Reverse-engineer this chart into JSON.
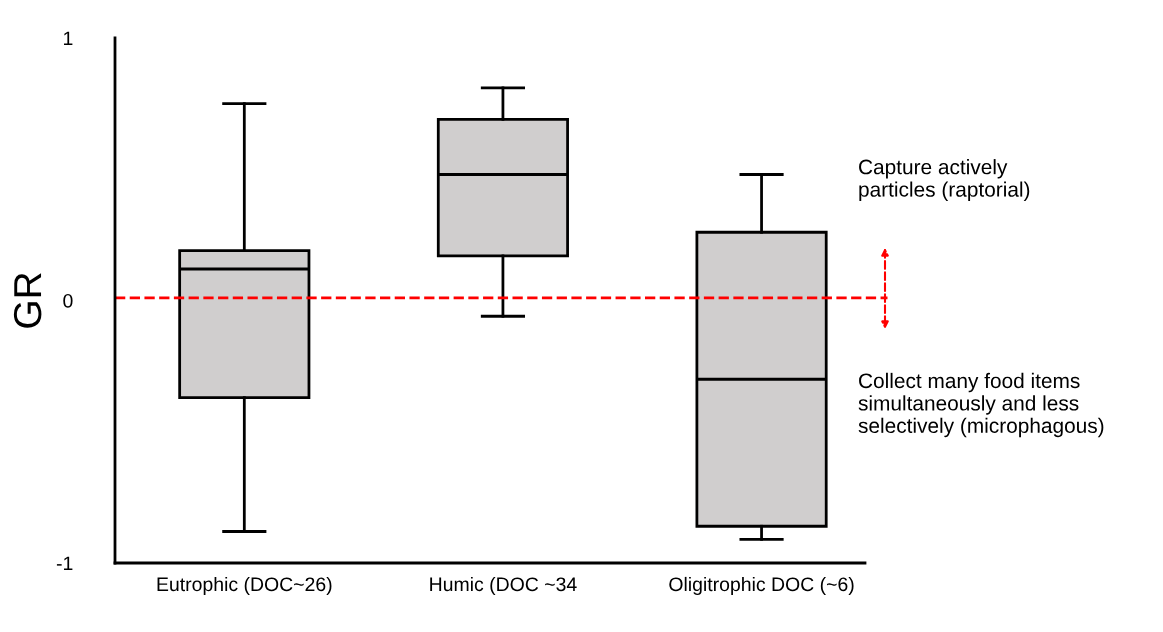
{
  "chart_data": {
    "type": "box",
    "ylabel": "GR",
    "categories": [
      "Eutrophic (DOC~26)",
      "Humic (DOC ~34",
      "Oligitrophic DOC (~6)"
    ],
    "boxes": [
      {
        "low": -0.88,
        "q1": -0.37,
        "median": 0.12,
        "q3": 0.19,
        "high": 0.75
      },
      {
        "low": -0.06,
        "q1": 0.17,
        "median": 0.48,
        "q3": 0.69,
        "high": 0.81
      },
      {
        "low": -0.91,
        "q1": -0.86,
        "median": -0.3,
        "q3": 0.26,
        "high": 0.48
      }
    ],
    "color": "#d0cece",
    "ylim": [
      -1,
      1
    ],
    "yticks": [
      -1,
      0,
      1
    ],
    "ref_lines": [
      {
        "axis": "y",
        "value": 0.01,
        "color": "#ff0000",
        "line_style": "dashed"
      }
    ],
    "annotations": [
      "Capture actively\nparticles (raptorial)",
      "Collect many food items\nsimultaneously and less\nselectively (microphagous)"
    ],
    "grid": false
  }
}
